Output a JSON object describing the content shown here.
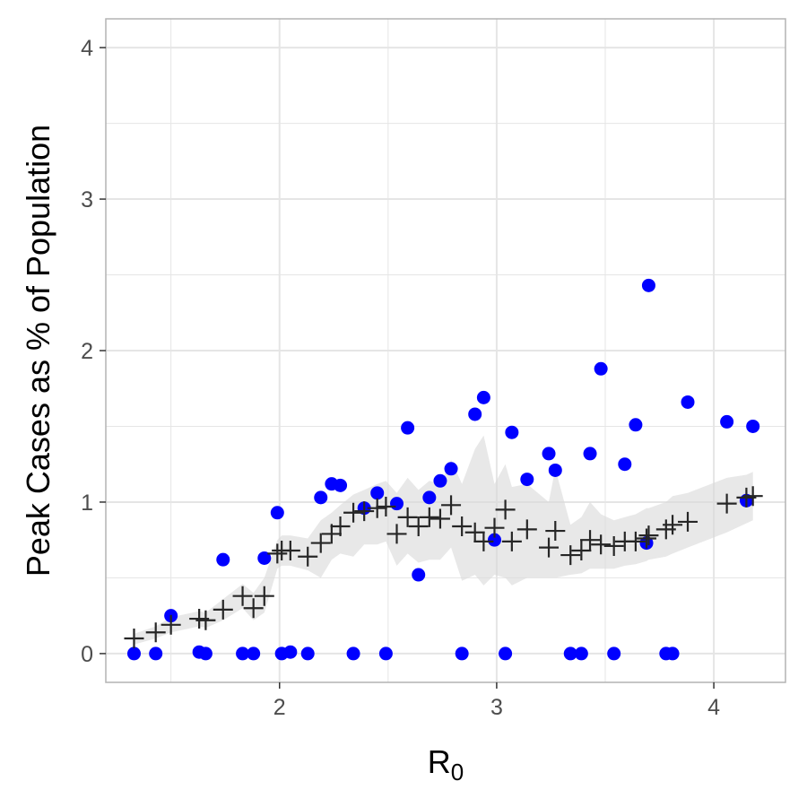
{
  "chart_data": {
    "type": "scatter",
    "title": "",
    "xlabel": "R",
    "xlabel_subscript": "0",
    "ylabel": "Peak Cases as % of Population",
    "xlim": [
      1.2,
      4.33
    ],
    "ylim": [
      -0.19,
      4.19
    ],
    "x_ticks": [
      2,
      3,
      4
    ],
    "y_ticks": [
      0,
      1,
      2,
      3,
      4
    ],
    "x_tick_labels": [
      "2",
      "3",
      "4"
    ],
    "y_tick_labels": [
      "0",
      "1",
      "2",
      "3",
      "4"
    ],
    "grid": true,
    "colors": {
      "points": "#0000ff",
      "crosses": "#262626",
      "band": "#d9d9d9",
      "grid": "#e5e5e5",
      "panel_border": "#b3b3b3"
    },
    "series": [
      {
        "kind": "points",
        "marker": "circle",
        "points": [
          [
            1.33,
            0.0
          ],
          [
            1.43,
            0.0
          ],
          [
            1.5,
            0.25
          ],
          [
            1.63,
            0.01
          ],
          [
            1.66,
            0.0
          ],
          [
            1.74,
            0.62
          ],
          [
            1.83,
            0.0
          ],
          [
            1.88,
            0.0
          ],
          [
            1.93,
            0.63
          ],
          [
            1.99,
            0.93
          ],
          [
            2.01,
            0.0
          ],
          [
            2.05,
            0.01
          ],
          [
            2.13,
            0.0
          ],
          [
            2.19,
            1.03
          ],
          [
            2.24,
            1.12
          ],
          [
            2.28,
            1.11
          ],
          [
            2.34,
            0.0
          ],
          [
            2.39,
            0.96
          ],
          [
            2.45,
            1.06
          ],
          [
            2.49,
            0.0
          ],
          [
            2.54,
            0.99
          ],
          [
            2.59,
            1.49
          ],
          [
            2.64,
            0.52
          ],
          [
            2.69,
            1.03
          ],
          [
            2.74,
            1.14
          ],
          [
            2.79,
            1.22
          ],
          [
            2.84,
            0.0
          ],
          [
            2.9,
            1.58
          ],
          [
            2.94,
            1.69
          ],
          [
            2.99,
            0.75
          ],
          [
            3.04,
            0.0
          ],
          [
            3.07,
            1.46
          ],
          [
            3.14,
            1.15
          ],
          [
            3.24,
            1.32
          ],
          [
            3.27,
            1.21
          ],
          [
            3.34,
            0.0
          ],
          [
            3.39,
            0.0
          ],
          [
            3.43,
            1.32
          ],
          [
            3.48,
            1.88
          ],
          [
            3.54,
            0.0
          ],
          [
            3.59,
            1.25
          ],
          [
            3.64,
            1.51
          ],
          [
            3.69,
            0.73
          ],
          [
            3.7,
            2.43
          ],
          [
            3.78,
            0.0
          ],
          [
            3.81,
            0.0
          ],
          [
            3.88,
            1.66
          ],
          [
            4.06,
            1.53
          ],
          [
            4.15,
            1.01
          ],
          [
            4.18,
            1.5
          ]
        ]
      },
      {
        "kind": "crosses",
        "marker": "plus",
        "points": [
          [
            1.33,
            0.1
          ],
          [
            1.43,
            0.14
          ],
          [
            1.5,
            0.19
          ],
          [
            1.63,
            0.23
          ],
          [
            1.66,
            0.22
          ],
          [
            1.74,
            0.29
          ],
          [
            1.83,
            0.38
          ],
          [
            1.88,
            0.3
          ],
          [
            1.93,
            0.38
          ],
          [
            1.99,
            0.66
          ],
          [
            2.01,
            0.68
          ],
          [
            2.05,
            0.68
          ],
          [
            2.13,
            0.64
          ],
          [
            2.19,
            0.73
          ],
          [
            2.24,
            0.79
          ],
          [
            2.28,
            0.84
          ],
          [
            2.34,
            0.93
          ],
          [
            2.39,
            0.94
          ],
          [
            2.45,
            0.96
          ],
          [
            2.49,
            0.97
          ],
          [
            2.54,
            0.79
          ],
          [
            2.59,
            0.9
          ],
          [
            2.64,
            0.84
          ],
          [
            2.69,
            0.9
          ],
          [
            2.74,
            0.89
          ],
          [
            2.79,
            0.98
          ],
          [
            2.84,
            0.84
          ],
          [
            2.9,
            0.8
          ],
          [
            2.94,
            0.74
          ],
          [
            2.99,
            0.83
          ],
          [
            3.04,
            0.95
          ],
          [
            3.07,
            0.74
          ],
          [
            3.14,
            0.82
          ],
          [
            3.24,
            0.7
          ],
          [
            3.27,
            0.81
          ],
          [
            3.34,
            0.65
          ],
          [
            3.39,
            0.68
          ],
          [
            3.43,
            0.75
          ],
          [
            3.48,
            0.72
          ],
          [
            3.54,
            0.71
          ],
          [
            3.59,
            0.74
          ],
          [
            3.64,
            0.74
          ],
          [
            3.69,
            0.76
          ],
          [
            3.7,
            0.78
          ],
          [
            3.78,
            0.82
          ],
          [
            3.81,
            0.85
          ],
          [
            3.88,
            0.87
          ],
          [
            4.06,
            0.99
          ],
          [
            4.15,
            1.03
          ],
          [
            4.18,
            1.04
          ]
        ]
      },
      {
        "kind": "band",
        "x": [
          1.33,
          1.43,
          1.5,
          1.63,
          1.66,
          1.74,
          1.83,
          1.88,
          1.93,
          1.99,
          2.01,
          2.05,
          2.13,
          2.19,
          2.24,
          2.28,
          2.34,
          2.39,
          2.45,
          2.49,
          2.54,
          2.59,
          2.64,
          2.69,
          2.74,
          2.79,
          2.84,
          2.9,
          2.94,
          2.99,
          3.04,
          3.07,
          3.14,
          3.24,
          3.27,
          3.34,
          3.39,
          3.43,
          3.48,
          3.54,
          3.59,
          3.64,
          3.69,
          3.7,
          3.78,
          3.81,
          3.88,
          4.06,
          4.15,
          4.18
        ],
        "lower": [
          0.06,
          0.1,
          0.14,
          0.18,
          0.17,
          0.22,
          0.3,
          0.22,
          0.27,
          0.56,
          0.58,
          0.58,
          0.55,
          0.5,
          0.62,
          0.66,
          0.64,
          0.72,
          0.72,
          0.74,
          0.58,
          0.66,
          0.6,
          0.62,
          0.62,
          0.7,
          0.48,
          0.52,
          0.45,
          0.52,
          0.5,
          0.45,
          0.5,
          0.5,
          0.5,
          0.52,
          0.53,
          0.56,
          0.56,
          0.56,
          0.58,
          0.59,
          0.61,
          0.62,
          0.64,
          0.66,
          0.7,
          0.8,
          0.86,
          0.88
        ],
        "upper": [
          0.13,
          0.18,
          0.24,
          0.28,
          0.27,
          0.36,
          0.46,
          0.4,
          0.5,
          0.75,
          0.78,
          0.78,
          0.76,
          0.88,
          0.93,
          0.98,
          1.05,
          1.08,
          1.12,
          1.14,
          1.06,
          1.16,
          1.08,
          1.14,
          1.12,
          1.28,
          1.12,
          1.35,
          1.44,
          1.12,
          1.25,
          1.1,
          1.12,
          1.0,
          1.22,
          0.85,
          0.9,
          1.0,
          0.92,
          0.88,
          0.9,
          0.92,
          0.96,
          0.96,
          1.0,
          1.04,
          1.06,
          1.16,
          1.18,
          1.2
        ]
      }
    ]
  }
}
